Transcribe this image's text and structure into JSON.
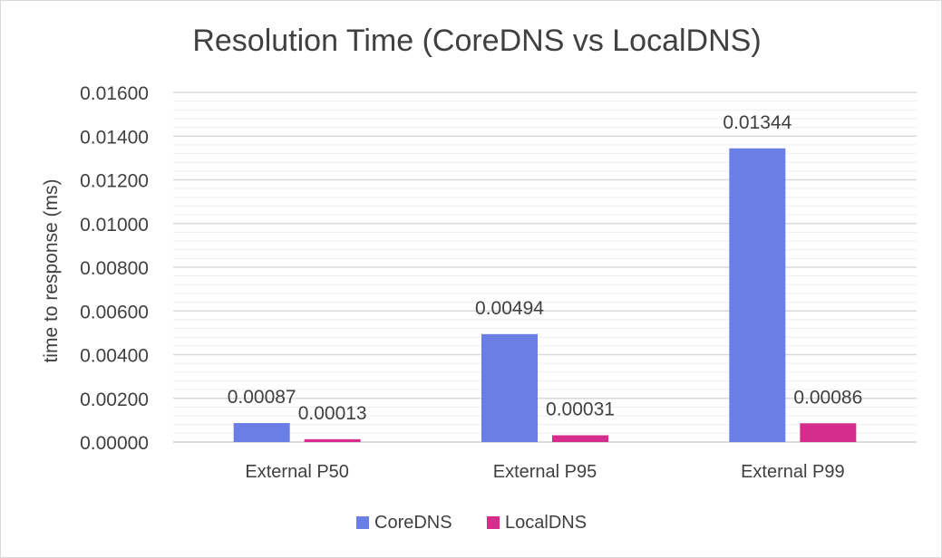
{
  "chart_data": {
    "type": "bar",
    "title": "Resolution Time (CoreDNS vs LocalDNS)",
    "xlabel": "",
    "ylabel": "time to response (ms)",
    "categories": [
      "External P50",
      "External P95",
      "External P99"
    ],
    "series": [
      {
        "name": "CoreDNS",
        "color": "#6b7ee6",
        "values": [
          0.00087,
          0.00494,
          0.01344
        ],
        "labels": [
          "0.00087",
          "0.00494",
          "0.01344"
        ]
      },
      {
        "name": "LocalDNS",
        "color": "#d62d8c",
        "values": [
          0.00013,
          0.00031,
          0.00086
        ],
        "labels": [
          "0.00013",
          "0.00031",
          "0.00086"
        ]
      }
    ],
    "ylim": [
      0,
      0.016
    ],
    "yticks": [
      "0.00000",
      "0.00200",
      "0.00400",
      "0.00600",
      "0.00800",
      "0.01000",
      "0.01200",
      "0.01400",
      "0.01600"
    ],
    "grid": true,
    "minor_grid": true,
    "legend_position": "bottom"
  }
}
